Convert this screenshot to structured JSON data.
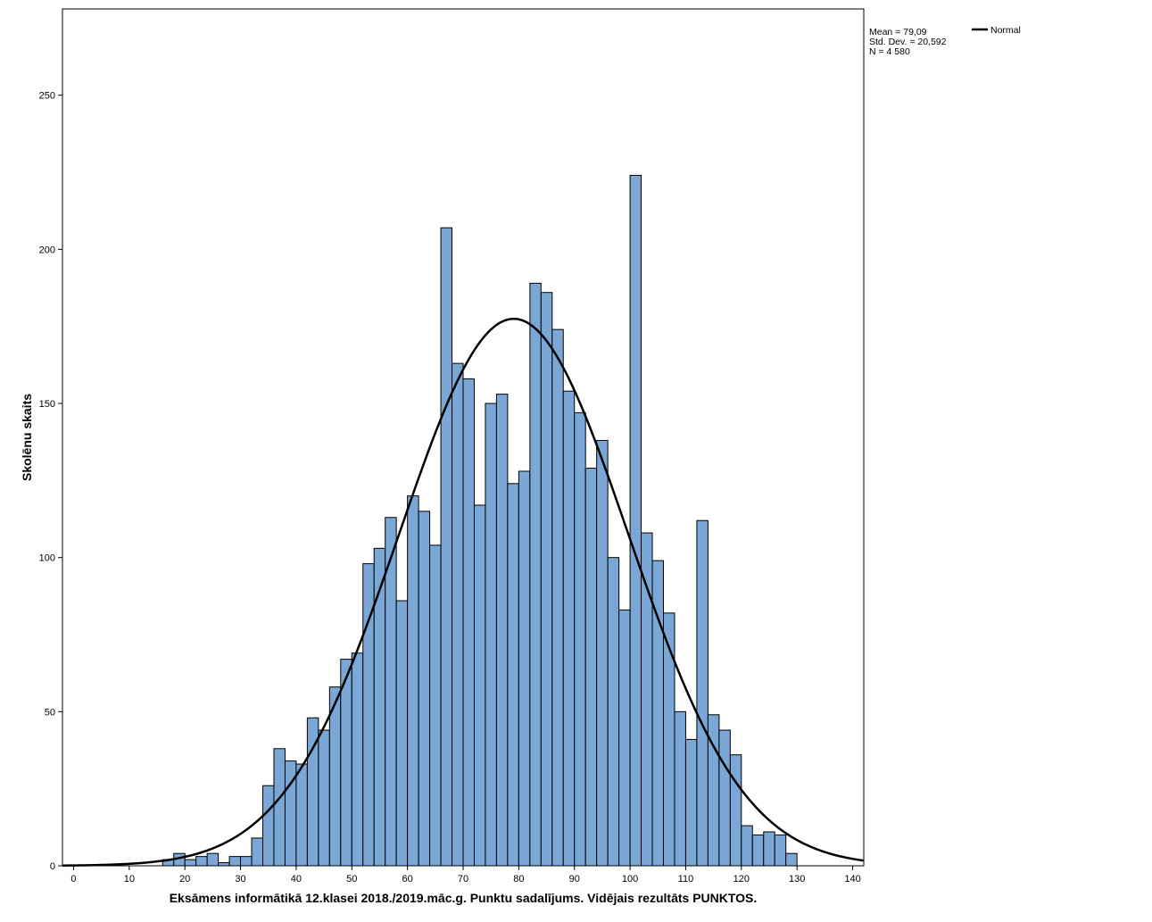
{
  "chart_data": {
    "type": "bar",
    "xlabel": "Eksāmens informātikā 12.klasei 2018./2019.māc.g. Punktu sadalījums. Vidējais rezultāts PUNKTOS.",
    "ylabel": "Skolēnu skaits",
    "xlim": [
      -2,
      142
    ],
    "ylim": [
      0,
      278
    ],
    "x_ticks": [
      0,
      10,
      20,
      30,
      40,
      50,
      60,
      70,
      80,
      90,
      100,
      110,
      120,
      130,
      140
    ],
    "y_ticks": [
      0,
      50,
      100,
      150,
      200,
      250
    ],
    "bin_width": 2,
    "bin_start": 16,
    "values": [
      2,
      4,
      2,
      3,
      4,
      1,
      3,
      3,
      9,
      26,
      38,
      34,
      33,
      48,
      44,
      58,
      67,
      69,
      98,
      103,
      113,
      86,
      120,
      115,
      104,
      207,
      163,
      158,
      117,
      150,
      153,
      124,
      128,
      189,
      186,
      174,
      154,
      147,
      129,
      138,
      100,
      83,
      224,
      108,
      99,
      82,
      50,
      41,
      112,
      49,
      44,
      36,
      13,
      10,
      11,
      10,
      4
    ],
    "bar_color": "#7ba7d7",
    "normal_curve": {
      "mean": 79.09,
      "sd": 20.592,
      "n": 4580,
      "color": "#000000"
    },
    "stats": [
      "Mean = 79,09",
      "Std. Dev. = 20,592",
      "N = 4 580"
    ],
    "legend": [
      {
        "name": "Normal",
        "color": "#000000"
      }
    ],
    "grid": false
  }
}
